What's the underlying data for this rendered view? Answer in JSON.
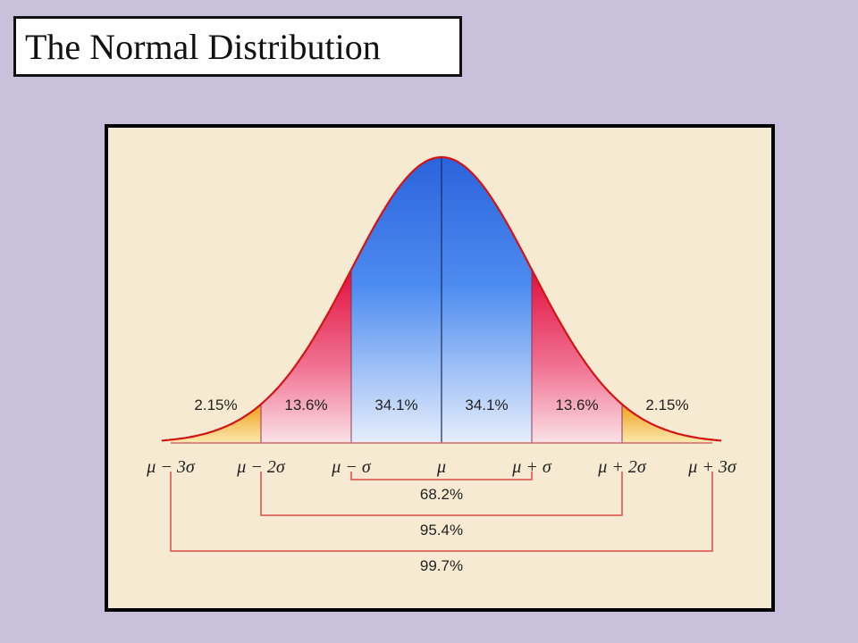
{
  "title": "The Normal Distribution",
  "colors": {
    "background": "#c9c0db",
    "panel": "#f7ead2",
    "center_band": "#2f6fe0",
    "middle_band": "#e4174a",
    "tail_band": "#f2a21a",
    "curve": "#d41414",
    "bracket": "#e04848"
  },
  "regions": [
    {
      "label": "2.15%",
      "from": -3,
      "to": -2,
      "band": "tail"
    },
    {
      "label": "13.6%",
      "from": -2,
      "to": -1,
      "band": "middle"
    },
    {
      "label": "34.1%",
      "from": -1,
      "to": 0,
      "band": "center"
    },
    {
      "label": "34.1%",
      "from": 0,
      "to": 1,
      "band": "center"
    },
    {
      "label": "13.6%",
      "from": 1,
      "to": 2,
      "band": "middle"
    },
    {
      "label": "2.15%",
      "from": 2,
      "to": 3,
      "band": "tail"
    }
  ],
  "axis_labels": [
    {
      "main": "μ",
      "op": "−",
      "k": "3σ",
      "pos": -3
    },
    {
      "main": "μ",
      "op": "−",
      "k": "2σ",
      "pos": -2
    },
    {
      "main": "μ",
      "op": "−",
      "k": "σ",
      "pos": -1
    },
    {
      "main": "μ",
      "op": "",
      "k": "",
      "pos": 0
    },
    {
      "main": "μ",
      "op": "+",
      "k": "σ",
      "pos": 1
    },
    {
      "main": "μ",
      "op": "+",
      "k": "2σ",
      "pos": 2
    },
    {
      "main": "μ",
      "op": "+",
      "k": "3σ",
      "pos": 3
    }
  ],
  "brackets": [
    {
      "label": "68.2%",
      "from": -1,
      "to": 1
    },
    {
      "label": "95.4%",
      "from": -2,
      "to": 2
    },
    {
      "label": "99.7%",
      "from": -3,
      "to": 3
    }
  ]
}
